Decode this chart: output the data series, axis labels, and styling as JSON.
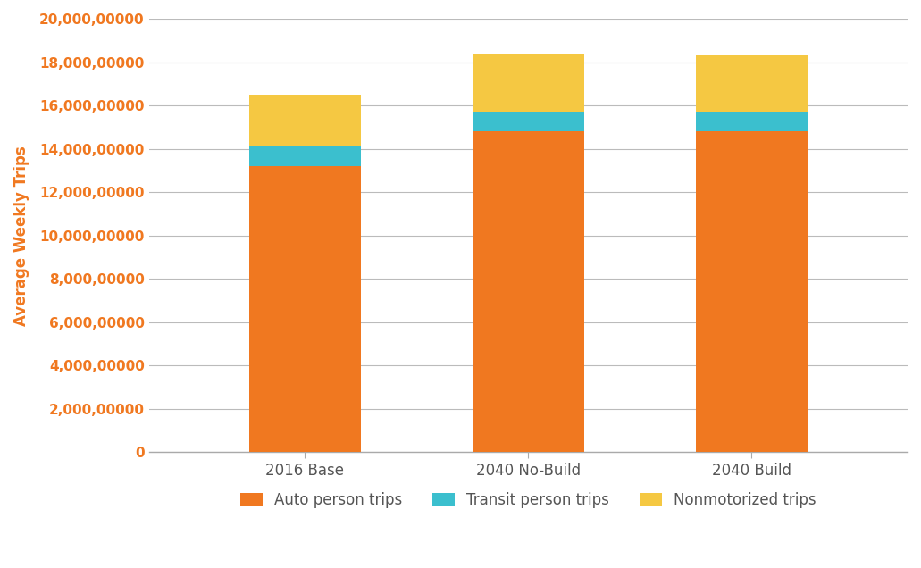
{
  "categories": [
    "2016 Base",
    "2040 No-Build",
    "2040 Build"
  ],
  "auto_trips": [
    1320000000,
    1480000000,
    1480000000
  ],
  "transit_trips": [
    90000000,
    90000000,
    90000000
  ],
  "nonmoto_trips": [
    240000000,
    270000000,
    260000000
  ],
  "auto_color": "#F07820",
  "transit_color": "#3BBFCE",
  "nonmoto_color": "#F5C842",
  "ylabel": "Average Weekly Trips",
  "ylim": [
    0,
    2000000000
  ],
  "ytick_step": 200000000,
  "legend_labels": [
    "Auto person trips",
    "Transit person trips",
    "Nonmotorized trips"
  ],
  "bar_width": 0.5,
  "bg_color": "#FFFFFF",
  "grid_color": "#BBBBBB",
  "axis_label_color": "#F07820",
  "tick_label_color": "#F07820",
  "xticklabel_color": "#555555"
}
